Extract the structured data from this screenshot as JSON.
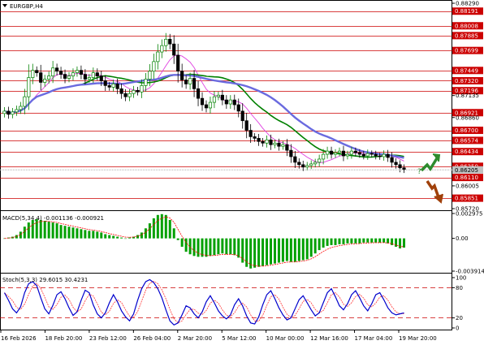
{
  "title": "EURGBP,H4",
  "colors": {
    "bull": "#008000",
    "bear": "#000000",
    "resistance": "#cc0000",
    "ma_fast": "#e040e0",
    "ma_mid": "#008000",
    "ma_slow": "#6a6adf",
    "macd_hist": "#00a000",
    "macd_signal": "#ff0000",
    "stoch_main": "#0000cc",
    "stoch_signal": "#ff3333",
    "stoch_level": "#cc0000",
    "arrow_up": "#2e8b2e",
    "arrow_down": "#a0400a"
  },
  "icons": {
    "menu": "triangle-down-icon",
    "arrow_up": "arrow-up-icon",
    "arrow_down": "arrow-down-icon"
  },
  "price_panel": {
    "resistance_levels": [
      "0.88191",
      "0.88008",
      "0.87885",
      "0.87699",
      "0.87449",
      "0.87320",
      "0.87196",
      "0.86921",
      "0.86700",
      "0.86574",
      "0.86434",
      "0.86250",
      "0.86110",
      "0.85851"
    ],
    "axis_labels": [
      "0.88290",
      "0.88191",
      "0.88008",
      "0.87885",
      "0.87699",
      "0.87449",
      "0.87320",
      "0.87196",
      "0.87135",
      "0.86921",
      "0.86860",
      "0.86700",
      "0.86574",
      "0.86434",
      "0.86250",
      "0.86205",
      "0.86110",
      "0.86005",
      "0.85851",
      "0.85720"
    ],
    "current_price": "0.86205"
  },
  "macd_panel": {
    "label": "MACD(5,34,4) -0.001136 -0.000921",
    "axis_labels": [
      "0.002975",
      "0.00",
      "-0.003914"
    ]
  },
  "stoch_panel": {
    "label": "Stoch(5,3,3) 29.6015 30.4231",
    "axis_labels": [
      "100",
      "80",
      "20",
      "0"
    ]
  },
  "x_axis": {
    "labels": [
      "16 Feb 2026",
      "18 Feb 20:00",
      "23 Feb 12:00",
      "26 Feb 04:00",
      "2 Mar 20:00",
      "5 Mar 12:00",
      "10 Mar 00:00",
      "12 Mar 16:00",
      "17 Mar 04:00",
      "19 Mar 20:00"
    ]
  },
  "chart_data": {
    "type": "candlestick",
    "symbol": "EURGBP",
    "timeframe": "H4",
    "x_labels": [
      "16 Feb 2026",
      "18 Feb 20:00",
      "23 Feb 12:00",
      "26 Feb 04:00",
      "2 Mar 20:00",
      "5 Mar 12:00",
      "10 Mar 00:00",
      "12 Mar 16:00",
      "17 Mar 04:00",
      "19 Mar 20:00"
    ],
    "price_ylim": [
      0.8572,
      0.8829
    ],
    "close_values": [
      0.8694,
      0.869,
      0.8693,
      0.8696,
      0.87,
      0.8712,
      0.8736,
      0.8745,
      0.8742,
      0.873,
      0.8734,
      0.8738,
      0.8748,
      0.8744,
      0.874,
      0.8735,
      0.8738,
      0.8742,
      0.8745,
      0.874,
      0.8734,
      0.8736,
      0.8742,
      0.8738,
      0.8732,
      0.8726,
      0.8724,
      0.8728,
      0.8722,
      0.8716,
      0.8712,
      0.8716,
      0.872,
      0.8718,
      0.8726,
      0.8734,
      0.8744,
      0.8756,
      0.8768,
      0.8776,
      0.8784,
      0.8778,
      0.8764,
      0.8744,
      0.8733,
      0.8728,
      0.8735,
      0.8722,
      0.871,
      0.8702,
      0.8698,
      0.8705,
      0.8712,
      0.8714,
      0.8708,
      0.8703,
      0.8708,
      0.8702,
      0.8694,
      0.8682,
      0.867,
      0.8662,
      0.866,
      0.8656,
      0.8654,
      0.8658,
      0.8652,
      0.8654,
      0.865,
      0.8652,
      0.8645,
      0.8637,
      0.863,
      0.8627,
      0.8624,
      0.8626,
      0.8628,
      0.863,
      0.8634,
      0.864,
      0.8644,
      0.864,
      0.8642,
      0.8644,
      0.8638,
      0.864,
      0.8644,
      0.8642,
      0.864,
      0.8638,
      0.8641,
      0.864,
      0.8638,
      0.8637,
      0.864,
      0.8636,
      0.863,
      0.8627,
      0.8623,
      0.8621
    ],
    "macd_ylim": [
      -0.003914,
      0.002975
    ],
    "macd_hist": [
      0.0,
      0.0001,
      0.0002,
      0.0004,
      0.0008,
      0.0014,
      0.0019,
      0.0022,
      0.0023,
      0.0022,
      0.0021,
      0.002,
      0.0019,
      0.0018,
      0.0016,
      0.0015,
      0.0014,
      0.0013,
      0.0012,
      0.0011,
      0.001,
      0.0009,
      0.0009,
      0.0008,
      0.0007,
      0.0005,
      0.0004,
      0.0003,
      0.0002,
      0.0001,
      0.0,
      0.0001,
      0.0002,
      0.0004,
      0.0007,
      0.0012,
      0.0018,
      0.0024,
      0.0028,
      0.0029,
      0.0028,
      0.0022,
      0.0012,
      -0.0002,
      -0.001,
      -0.0016,
      -0.0019,
      -0.0021,
      -0.0022,
      -0.0022,
      -0.0022,
      -0.0021,
      -0.002,
      -0.0019,
      -0.0018,
      -0.0019,
      -0.0019,
      -0.002,
      -0.0023,
      -0.0029,
      -0.0034,
      -0.0036,
      -0.0035,
      -0.0034,
      -0.0033,
      -0.0032,
      -0.0031,
      -0.003,
      -0.0029,
      -0.0028,
      -0.0027,
      -0.0028,
      -0.0028,
      -0.0027,
      -0.0026,
      -0.0025,
      -0.0022,
      -0.0018,
      -0.0014,
      -0.0011,
      -0.0009,
      -0.0008,
      -0.0008,
      -0.0007,
      -0.0007,
      -0.0006,
      -0.0006,
      -0.0006,
      -0.0006,
      -0.0005,
      -0.0005,
      -0.0005,
      -0.0005,
      -0.0005,
      -0.0005,
      -0.0006,
      -0.0008,
      -0.001,
      -0.0012,
      -0.0011
    ],
    "stoch_ylim": [
      0,
      100
    ],
    "stoch_levels": [
      80,
      20
    ],
    "stoch_main": [
      70,
      55,
      38,
      30,
      42,
      70,
      88,
      92,
      84,
      60,
      38,
      28,
      45,
      66,
      72,
      58,
      40,
      25,
      32,
      55,
      75,
      70,
      46,
      28,
      20,
      30,
      50,
      66,
      52,
      34,
      22,
      14,
      28,
      55,
      78,
      92,
      96,
      90,
      78,
      60,
      36,
      14,
      6,
      10,
      26,
      44,
      40,
      28,
      20,
      32,
      52,
      64,
      50,
      34,
      24,
      18,
      26,
      46,
      58,
      44,
      24,
      10,
      8,
      22,
      46,
      66,
      74,
      58,
      40,
      26,
      16,
      20,
      38,
      56,
      64,
      50,
      36,
      24,
      30,
      50,
      70,
      78,
      62,
      44,
      36,
      48,
      66,
      74,
      60,
      44,
      34,
      48,
      66,
      70,
      56,
      40,
      30,
      26,
      28,
      30
    ]
  }
}
